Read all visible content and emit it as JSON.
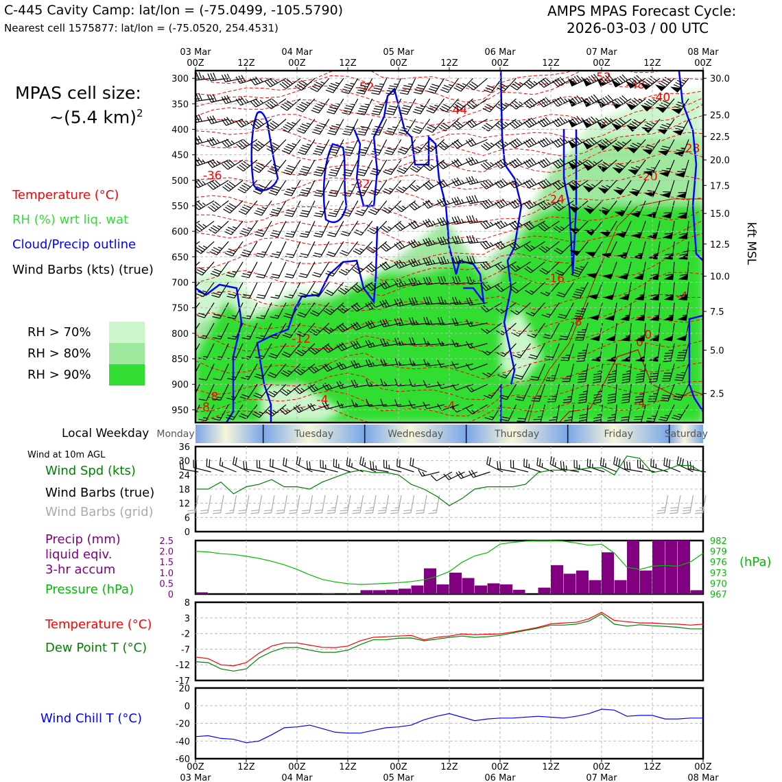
{
  "header": {
    "title": "C-445 Cavity Camp: lat/lon = (-75.0499, -105.5790)",
    "subtitle": "Nearest cell 1575877: lat/lon = (-75.0520, 254.4531)",
    "right_line1": "AMPS MPAS Forecast Cycle:",
    "right_line2": "2026-03-03 / 00 UTC"
  },
  "cell_size": {
    "line1": "MPAS cell size:",
    "line2": "~(5.4 km)",
    "sup": "2"
  },
  "legend": {
    "temperature": "Temperature (°C)",
    "rh": "RH (%) wrt liq. wat",
    "cloud": "Cloud/Precip outline",
    "wind": "Wind Barbs (kts) (true)",
    "rh70": "RH > 70%",
    "rh80": "RH > 80%",
    "rh90": "RH > 90%"
  },
  "colors": {
    "rh70": "#ccf5cc",
    "rh80": "#9ee89e",
    "rh90": "#33dd33",
    "temperature": "#ff0000",
    "cloud": "#0000ff",
    "wind_speed": "#008000",
    "precip": "#800080",
    "pressure": "#00bb00",
    "dewpoint": "#008000",
    "windchill": "#0000ff",
    "grid_barb": "#aaaaaa"
  },
  "time_axis": {
    "ticks": [
      {
        "top": "03 Mar",
        "bottom": "00Z"
      },
      {
        "top": "",
        "bottom": "12Z"
      },
      {
        "top": "04 Mar",
        "bottom": "00Z"
      },
      {
        "top": "",
        "bottom": "12Z"
      },
      {
        "top": "05 Mar",
        "bottom": "00Z"
      },
      {
        "top": "",
        "bottom": "12Z"
      },
      {
        "top": "06 Mar",
        "bottom": "00Z"
      },
      {
        "top": "",
        "bottom": "12Z"
      },
      {
        "top": "07 Mar",
        "bottom": "00Z"
      },
      {
        "top": "",
        "bottom": "12Z"
      },
      {
        "top": "08 Mar",
        "bottom": "00Z"
      }
    ]
  },
  "weekday": {
    "label": "Local Weekday",
    "days": [
      "Monday",
      "Tuesday",
      "Wednesday",
      "Thursday",
      "Friday",
      "Saturday"
    ]
  },
  "chart_data": [
    {
      "type": "heatmap",
      "name": "vertical cross-section",
      "y_left_ticks": [
        "300",
        "350",
        "400",
        "450",
        "500",
        "550",
        "600",
        "650",
        "700",
        "750",
        "800",
        "850",
        "900",
        "950"
      ],
      "y_left_values": [
        300,
        350,
        400,
        450,
        500,
        550,
        600,
        650,
        700,
        750,
        800,
        850,
        900,
        950
      ],
      "y_right_label": "kft MSL",
      "y_right_ticks": [
        "30.0",
        "25.0",
        "22.5",
        "20.0",
        "17.5",
        "15.0",
        "12.5",
        "10.0",
        "7.5",
        "5.0",
        "2.5"
      ],
      "y_right_pressures": [
        300,
        372,
        414,
        460,
        510,
        565,
        625,
        688,
        757,
        833,
        918
      ],
      "ylim": [
        975,
        285
      ],
      "temperature_labels": [
        {
          "text": "-52",
          "hour": 40,
          "p": 325
        },
        {
          "text": "-52",
          "hour": 96,
          "p": 305
        },
        {
          "text": "-48",
          "hour": 104,
          "p": 320
        },
        {
          "text": "-40",
          "hour": 110,
          "p": 345
        },
        {
          "text": "-44",
          "hour": 62,
          "p": 370
        },
        {
          "text": "-28",
          "hour": 117,
          "p": 445
        },
        {
          "text": "-36",
          "hour": 4,
          "p": 498
        },
        {
          "text": "-32",
          "hour": 39,
          "p": 515
        },
        {
          "text": "-20",
          "hour": 107,
          "p": 500
        },
        {
          "text": "-24",
          "hour": 85,
          "p": 545
        },
        {
          "text": "-16",
          "hour": 85,
          "p": 700
        },
        {
          "text": "-4",
          "hour": 115,
          "p": 735
        },
        {
          "text": "-8",
          "hour": 90,
          "p": 785
        },
        {
          "text": "-12",
          "hour": 25,
          "p": 818
        },
        {
          "text": "0",
          "hour": 105,
          "p": 825
        },
        {
          "text": "0",
          "hour": 107,
          "p": 810
        },
        {
          "text": "-8",
          "hour": 4,
          "p": 932
        },
        {
          "text": "-8",
          "hour": 2,
          "p": 952
        },
        {
          "text": "-4",
          "hour": 30,
          "p": 938
        },
        {
          "text": "-4",
          "hour": 60,
          "p": 950
        },
        {
          "text": "-4",
          "hour": 105,
          "p": 945
        }
      ]
    },
    {
      "type": "line",
      "name": "wind",
      "title": "Wind at 10m AGL",
      "labels": [
        "Wind Spd (kts)",
        "Wind Barbs (true)",
        "Wind Barbs (grid)"
      ],
      "ylim": [
        0,
        36
      ],
      "yticks": [
        0,
        6,
        12,
        18,
        24,
        30,
        36
      ],
      "x": [
        0,
        3,
        6,
        9,
        12,
        15,
        18,
        21,
        24,
        27,
        30,
        33,
        36,
        39,
        42,
        45,
        48,
        51,
        54,
        57,
        60,
        63,
        66,
        69,
        72,
        75,
        78,
        81,
        84,
        87,
        90,
        93,
        96,
        99,
        102,
        105,
        108,
        111,
        114,
        117,
        120
      ],
      "series": [
        {
          "name": "Wind Spd (kts)",
          "values": [
            18,
            18,
            21,
            16,
            19,
            20,
            22,
            19,
            19,
            18,
            21,
            23,
            25,
            26,
            25,
            25,
            24,
            20,
            18,
            15,
            11,
            14,
            18,
            19,
            19,
            19,
            20,
            25,
            26,
            26,
            26,
            27,
            27,
            24,
            32,
            31,
            25,
            26,
            28,
            28,
            25
          ]
        }
      ]
    },
    {
      "type": "bar",
      "name": "precip-pressure",
      "labels": [
        "Precip (mm)",
        "liquid eqiv.",
        "3-hr accum",
        "Pressure (hPa)"
      ],
      "pressure_unit": "(hPa)",
      "ylim_precip": [
        0,
        2.5
      ],
      "yticks_precip": [
        "0",
        "0.5",
        "1.0",
        "1.5",
        "2.0",
        "2.5"
      ],
      "ylim_pressure": [
        967,
        982
      ],
      "yticks_pressure": [
        "967",
        "970",
        "973",
        "976",
        "979",
        "982"
      ],
      "x_precip": [
        0,
        3,
        6,
        9,
        12,
        15,
        18,
        21,
        24,
        27,
        30,
        33,
        36,
        39,
        42,
        45,
        48,
        51,
        54,
        57,
        60,
        63,
        66,
        69,
        72,
        75,
        78,
        81,
        84,
        87,
        90,
        93,
        96,
        99,
        102,
        105,
        108,
        111,
        114,
        117
      ],
      "precip": [
        0.08,
        0,
        0,
        0,
        0,
        0,
        0,
        0,
        0,
        0,
        0.03,
        0,
        0,
        0.18,
        0.18,
        0.2,
        0.25,
        0.4,
        1.2,
        0.45,
        1.0,
        0.75,
        0.4,
        0.5,
        0.45,
        0.2,
        0,
        0.3,
        1.35,
        0.95,
        1.1,
        0.65,
        1.95,
        0.65,
        2.5,
        1.1,
        2.5,
        2.5,
        2.5,
        0.18
      ],
      "x_pressure": [
        0,
        3,
        6,
        9,
        12,
        15,
        18,
        21,
        24,
        27,
        30,
        33,
        36,
        39,
        42,
        45,
        48,
        51,
        54,
        57,
        60,
        63,
        66,
        69,
        72,
        75,
        78,
        81,
        84,
        87,
        90,
        93,
        96,
        99,
        102,
        105,
        108,
        111,
        114,
        117,
        120
      ],
      "pressure": [
        979,
        978.8,
        978.3,
        978.1,
        977.6,
        977,
        976.2,
        975.2,
        973.9,
        972.4,
        971.1,
        970.4,
        969.9,
        969.7,
        969.8,
        970,
        970.2,
        970.5,
        971,
        971.9,
        973.3,
        975.9,
        977.7,
        978.6,
        981,
        981.5,
        981.8,
        982,
        982,
        981.8,
        981.3,
        980.7,
        981,
        978.5,
        974.5,
        973.9,
        974.8,
        975,
        974.8,
        976,
        978.4
      ]
    },
    {
      "type": "line",
      "name": "temperature",
      "labels": [
        "Temperature (°C)",
        "Dew Point T (°C)"
      ],
      "ylim": [
        -17,
        8
      ],
      "yticks": [
        "8",
        "3",
        "-2",
        "-7",
        "-12",
        "-17"
      ],
      "x": [
        0,
        3,
        6,
        9,
        12,
        15,
        18,
        21,
        24,
        27,
        30,
        33,
        36,
        39,
        42,
        45,
        48,
        51,
        54,
        57,
        60,
        63,
        66,
        69,
        72,
        75,
        78,
        81,
        84,
        87,
        90,
        93,
        96,
        99,
        102,
        105,
        108,
        111,
        114,
        117,
        120
      ],
      "series": [
        {
          "name": "Temperature (°C)",
          "values": [
            -9.5,
            -10,
            -12,
            -12.3,
            -11.3,
            -8.3,
            -6,
            -5,
            -5,
            -5.7,
            -6.4,
            -6.5,
            -6,
            -4.3,
            -3.2,
            -3,
            -2.8,
            -2.6,
            -4,
            -3.2,
            -2.8,
            -2.1,
            -2.4,
            -2.2,
            -2.1,
            -1.5,
            -0.8,
            0,
            1.1,
            1.4,
            1.6,
            2.7,
            4.8,
            2.2,
            1.8,
            1.4,
            1.4,
            1.1,
            1,
            0.7,
            1
          ]
        },
        {
          "name": "Dew Point T (°C)",
          "values": [
            -11,
            -11.3,
            -13.3,
            -14,
            -13.3,
            -9.8,
            -7.8,
            -6.5,
            -6.4,
            -7.3,
            -8,
            -8,
            -7.3,
            -5.5,
            -4,
            -4,
            -3.5,
            -3.4,
            -4.3,
            -3.8,
            -3.2,
            -2.8,
            -3.2,
            -3,
            -2.6,
            -1.8,
            -1,
            -0.3,
            0.7,
            0.7,
            1,
            2,
            4.3,
            1,
            0.4,
            0.8,
            0.5,
            0.3,
            0,
            -0.5,
            -0.5
          ]
        }
      ]
    },
    {
      "type": "line",
      "name": "windchill",
      "labels": [
        "Wind Chill T (°C)"
      ],
      "ylim": [
        -60,
        20
      ],
      "yticks": [
        "20",
        "0",
        "-20",
        "-40",
        "-60"
      ],
      "x": [
        0,
        3,
        6,
        9,
        12,
        15,
        18,
        21,
        24,
        27,
        30,
        33,
        36,
        39,
        42,
        45,
        48,
        51,
        54,
        57,
        60,
        63,
        66,
        69,
        72,
        75,
        78,
        81,
        84,
        87,
        90,
        93,
        96,
        99,
        102,
        105,
        108,
        111,
        114,
        117,
        120
      ],
      "series": [
        {
          "name": "Wind Chill T (°C)",
          "values": [
            -35,
            -34,
            -37,
            -38,
            -42,
            -40,
            -33,
            -25,
            -24,
            -22,
            -26,
            -30,
            -31,
            -31,
            -28,
            -25,
            -24,
            -22,
            -16,
            -12,
            -9,
            -13,
            -17,
            -15,
            -14,
            -14,
            -13,
            -12,
            -13,
            -14,
            -12,
            -9,
            -4,
            -5,
            -12,
            -11,
            -11,
            -15,
            -15,
            -14,
            -14
          ]
        }
      ]
    }
  ]
}
